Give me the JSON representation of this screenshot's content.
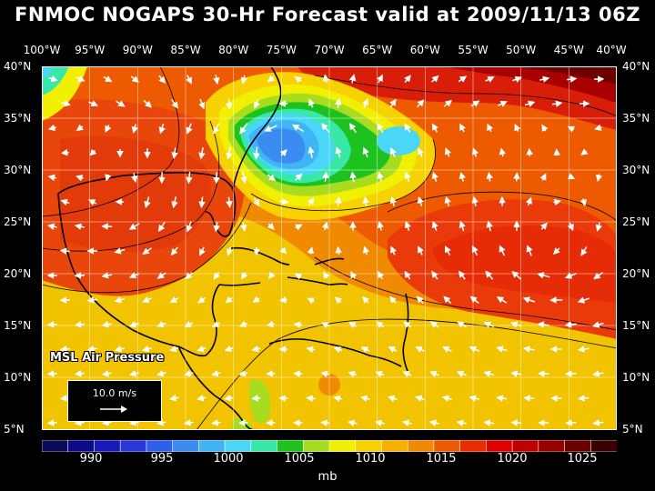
{
  "title": "FNMOC NOGAPS 30-Hr Forecast valid at 2009/11/13 06Z",
  "lon_labels": [
    "100°W",
    "95°W",
    "90°W",
    "85°W",
    "80°W",
    "75°W",
    "70°W",
    "65°W",
    "60°W",
    "55°W",
    "50°W",
    "45°W",
    "40°W"
  ],
  "lat_labels": [
    "40°N",
    "35°N",
    "30°N",
    "25°N",
    "20°N",
    "15°N",
    "10°N",
    "5°N"
  ],
  "overlay": {
    "label": "MSL Air Pressure"
  },
  "scale": {
    "label": "10.0 m/s"
  },
  "colorbar": {
    "labels": [
      "990",
      "995",
      "1000",
      "1005",
      "1010",
      "1015",
      "1020",
      "1025"
    ],
    "unit": "mb",
    "colors": [
      "#0b0b5a",
      "#0b0b8a",
      "#1a1ab8",
      "#2b36d8",
      "#2f60ea",
      "#3a8cf0",
      "#40b4f4",
      "#4ad6f6",
      "#38e8a8",
      "#1ec21e",
      "#a8dc1e",
      "#f0f000",
      "#f8d200",
      "#f8b000",
      "#f08a00",
      "#ee5a00",
      "#e82d00",
      "#e00000",
      "#c00000",
      "#980000",
      "#6a0000",
      "#3a0000"
    ]
  },
  "pressure_field": {
    "background": "#f2c400",
    "regions": [
      {
        "name": "subtropical-high-atlantic",
        "color": "#ea3a0a"
      },
      {
        "name": "gulf-high",
        "color": "#e8460a"
      },
      {
        "name": "north-ridge",
        "color": "#d81e08"
      },
      {
        "name": "atlantic-high-core",
        "color": "#ec5a0a"
      },
      {
        "name": "low-center",
        "color": "#3a8cf0"
      }
    ]
  }
}
